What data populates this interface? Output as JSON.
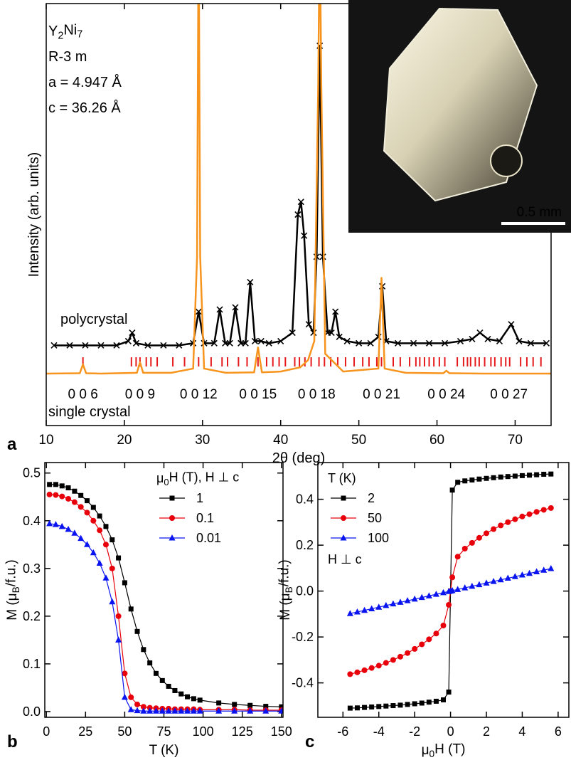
{
  "chart_data": [
    {
      "type": "line",
      "panel_label": "a",
      "x_label": "2θ (deg)",
      "y_label": "Intensity (arb. units)",
      "xlim": [
        10,
        74.6
      ],
      "xticks": [
        10,
        20,
        30,
        40,
        50,
        60,
        70
      ],
      "ylim": [
        0,
        100
      ],
      "annotations": [
        "Y2Ni7",
        "R-3 m",
        "a = 4.947 Å",
        "c = 36.26 Å"
      ],
      "inset": {
        "scale_bar": "0.5 mm"
      },
      "series": [
        {
          "name": "polycrystal",
          "color": "#000000",
          "marker": "x",
          "x": [
            11,
            13,
            15,
            17,
            19,
            20.5,
            21,
            21.5,
            23,
            25,
            27,
            28.8,
            29.5,
            30.2,
            31.5,
            32.2,
            32.9,
            33.5,
            34.2,
            34.9,
            35.5,
            36.1,
            36.7,
            37.5,
            38.5,
            40,
            41.5,
            42.2,
            42.6,
            43,
            43.6,
            44.2,
            44.6,
            45,
            45.4,
            46,
            46.5,
            47,
            47.5,
            48.5,
            50,
            51.5,
            52.5,
            53,
            53.5,
            55,
            57,
            59,
            61,
            63,
            64.5,
            65.5,
            66.5,
            68,
            69.5,
            70.5,
            72,
            74
          ],
          "values": [
            19,
            19,
            19,
            19,
            19,
            20,
            22,
            19.5,
            19,
            19,
            19,
            19.5,
            27,
            19.5,
            19.5,
            27.5,
            19.5,
            19.5,
            28,
            19.5,
            19.5,
            34,
            20,
            20,
            19.5,
            20,
            22,
            50,
            53,
            45,
            24,
            22,
            40,
            90,
            40,
            22,
            22,
            27,
            21,
            20,
            19.5,
            19.5,
            21,
            33,
            20,
            19.5,
            19.5,
            19.5,
            19.5,
            20,
            20.5,
            22,
            20.5,
            20,
            24,
            20,
            19.5,
            19.5
          ]
        },
        {
          "name": "single crystal",
          "color": "#f7941d",
          "marker": "none",
          "x": [
            10,
            14.3,
            14.7,
            15.1,
            17,
            21.6,
            22,
            22.4,
            26,
            28.8,
            29.3,
            29.5,
            29.7,
            30.2,
            33,
            36.6,
            37.1,
            37.6,
            40,
            42.5,
            43.5,
            44.3,
            44.8,
            45,
            45.2,
            45.7,
            48,
            52.5,
            52.9,
            53.3,
            56,
            60.8,
            61.2,
            61.6,
            66,
            70,
            74.6
          ],
          "values": [
            12.3,
            12.4,
            14.5,
            12.4,
            12.3,
            12.5,
            15,
            12.5,
            12.5,
            13.5,
            40,
            120,
            40,
            13.5,
            12.5,
            12.6,
            18.5,
            12.6,
            12.8,
            13.8,
            15.5,
            20,
            80,
            120,
            80,
            17,
            12.8,
            13.5,
            35,
            13.5,
            12.5,
            12.4,
            13,
            12.4,
            12.3,
            12.3,
            12.3
          ]
        }
      ],
      "bragg_positions": {
        "color": "#e41a1c",
        "x": [
          14.7,
          20.9,
          21.5,
          22.0,
          22.8,
          23.4,
          24.2,
          26.2,
          27.7,
          29.5,
          31.1,
          32.5,
          33.2,
          34.6,
          35.7,
          37.1,
          38.2,
          39.0,
          39.8,
          40.6,
          41.8,
          42.4,
          43.1,
          43.9,
          44.9,
          45.6,
          46.4,
          47.3,
          48.3,
          49.4,
          50.5,
          51.3,
          52.3,
          52.9,
          54.4,
          55.3,
          56.5,
          57.3,
          57.8,
          58.4,
          59.0,
          59.6,
          60.3,
          61.0,
          62.6,
          63.4,
          63.9,
          64.3,
          64.9,
          65.4,
          66.1,
          66.9,
          67.4,
          68.2,
          68.8,
          69.3,
          70.7,
          71.5,
          72.3,
          73.3
        ]
      },
      "peak_labels": [
        {
          "label": "0 0 6",
          "x": 14.7
        },
        {
          "label": "0 0 9",
          "x": 22.0
        },
        {
          "label": "0 0 12",
          "x": 29.5
        },
        {
          "label": "0 0 15",
          "x": 37.1
        },
        {
          "label": "0 0 18",
          "x": 44.6
        },
        {
          "label": "0 0 21",
          "x": 52.9
        },
        {
          "label": "0 0 24",
          "x": 61.2
        },
        {
          "label": "0 0 27",
          "x": 69.2
        }
      ]
    },
    {
      "type": "line",
      "panel_label": "b",
      "x_label": "T (K)",
      "y_label": "M (μB/f.u.)",
      "xlim": [
        -1,
        151
      ],
      "xticks": [
        0,
        25,
        50,
        75,
        100,
        125,
        150
      ],
      "ylim": [
        -0.012,
        0.522
      ],
      "yticks": [
        {
          "value": 0,
          "label": "0.0"
        },
        0.1,
        0.2,
        0.3,
        0.4,
        0.5
      ],
      "legend": "upper right",
      "legend_title": "μ0H (T), H ⊥ c",
      "x": [
        2,
        6,
        10,
        14,
        18,
        22,
        26,
        30,
        34,
        38,
        42,
        46,
        50,
        54,
        58,
        62,
        66,
        70,
        74,
        78,
        82,
        86,
        90,
        94,
        98,
        110,
        120,
        130,
        140,
        150
      ],
      "series": [
        {
          "name": "1",
          "color": "#000000",
          "marker": "square",
          "values": [
            0.476,
            0.476,
            0.473,
            0.469,
            0.462,
            0.453,
            0.442,
            0.428,
            0.41,
            0.388,
            0.36,
            0.322,
            0.27,
            0.215,
            0.168,
            0.13,
            0.102,
            0.08,
            0.065,
            0.053,
            0.044,
            0.037,
            0.031,
            0.027,
            0.024,
            0.018,
            0.015,
            0.013,
            0.011,
            0.01
          ]
        },
        {
          "name": "0.1",
          "color": "#e8000b",
          "marker": "circle",
          "values": [
            0.455,
            0.454,
            0.451,
            0.446,
            0.439,
            0.429,
            0.417,
            0.4,
            0.38,
            0.35,
            0.3,
            0.2,
            0.08,
            0.03,
            0.015,
            0.01,
            0.008,
            0.007,
            0.006,
            0.006,
            0.005,
            0.005,
            0.005,
            0.005,
            0.004,
            0.004,
            0.004,
            0.003,
            0.003,
            0.003
          ]
        },
        {
          "name": "0.01",
          "color": "#0a14f0",
          "marker": "triangle",
          "values": [
            0.394,
            0.392,
            0.388,
            0.382,
            0.374,
            0.363,
            0.35,
            0.333,
            0.311,
            0.28,
            0.23,
            0.15,
            0.03,
            0.004,
            0.002,
            0.001,
            0.001,
            0.001,
            0.001,
            0.001,
            0.001,
            0.001,
            0.001,
            0.001,
            0.001,
            0.001,
            0.001,
            0.001,
            0.001,
            0.001
          ]
        }
      ]
    },
    {
      "type": "line",
      "panel_label": "c",
      "x_label": "μ0H (T)",
      "y_label": "M (μB/f.u.)",
      "xlim": [
        -7.4,
        6.6
      ],
      "xticks": [
        -6,
        -4,
        -2,
        0,
        2,
        4,
        6
      ],
      "ylim": [
        -0.55,
        0.56
      ],
      "yticks": [
        -0.4,
        -0.2,
        {
          "value": 0,
          "label": "0.0"
        },
        0.2,
        0.4
      ],
      "legend": "upper left",
      "legend_title": "T (K)",
      "legend_note": "H ⊥ c",
      "x": [
        -5.6,
        -5.2,
        -4.8,
        -4.4,
        -4.0,
        -3.6,
        -3.2,
        -2.8,
        -2.4,
        -2.0,
        -1.6,
        -1.2,
        -0.8,
        -0.4,
        -0.1,
        0,
        0.1,
        0.4,
        0.8,
        1.2,
        1.6,
        2.0,
        2.4,
        2.8,
        3.2,
        3.6,
        4.0,
        4.4,
        4.8,
        5.2,
        5.6
      ],
      "series": [
        {
          "name": "2",
          "color": "#000000",
          "marker": "square",
          "values": [
            -0.51,
            -0.509,
            -0.507,
            -0.505,
            -0.503,
            -0.501,
            -0.499,
            -0.497,
            -0.494,
            -0.491,
            -0.488,
            -0.484,
            -0.48,
            -0.474,
            -0.44,
            0,
            0.44,
            0.474,
            0.48,
            0.484,
            0.488,
            0.491,
            0.494,
            0.497,
            0.499,
            0.501,
            0.503,
            0.505,
            0.507,
            0.509,
            0.51
          ]
        },
        {
          "name": "50",
          "color": "#e8000b",
          "marker": "circle",
          "values": [
            -0.362,
            -0.354,
            -0.345,
            -0.335,
            -0.325,
            -0.313,
            -0.3,
            -0.286,
            -0.27,
            -0.252,
            -0.232,
            -0.21,
            -0.185,
            -0.15,
            -0.06,
            0,
            0.06,
            0.15,
            0.185,
            0.21,
            0.232,
            0.252,
            0.27,
            0.286,
            0.3,
            0.313,
            0.325,
            0.335,
            0.345,
            0.354,
            0.362
          ]
        },
        {
          "name": "100",
          "color": "#0a14f0",
          "marker": "triangle",
          "values": [
            -0.098,
            -0.091,
            -0.084,
            -0.077,
            -0.07,
            -0.063,
            -0.056,
            -0.049,
            -0.042,
            -0.035,
            -0.028,
            -0.021,
            -0.014,
            -0.007,
            -0.002,
            0,
            0.002,
            0.007,
            0.014,
            0.021,
            0.028,
            0.035,
            0.042,
            0.049,
            0.056,
            0.063,
            0.07,
            0.077,
            0.084,
            0.091,
            0.098
          ]
        }
      ]
    }
  ]
}
